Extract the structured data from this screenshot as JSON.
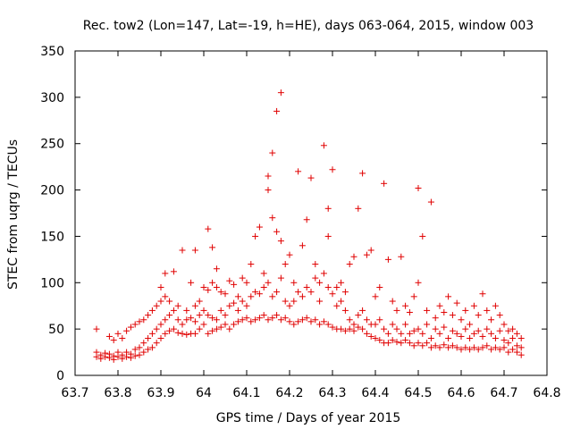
{
  "chart_data": {
    "type": "scatter",
    "title": "Rec. tow2 (Lon=147, Lat=-19, h=HE), days 063-064, 2015, window 003",
    "xlabel": "GPS time / Days of year 2015",
    "ylabel": "STEC from uqrg / TECUs",
    "xlim": [
      63.7,
      64.8
    ],
    "ylim": [
      0,
      350
    ],
    "xticks": [
      "63.7",
      "63.8",
      "63.9",
      "64",
      "64.1",
      "64.2",
      "64.3",
      "64.4",
      "64.5",
      "64.6",
      "64.7",
      "64.8"
    ],
    "yticks": [
      "0",
      "50",
      "100",
      "150",
      "200",
      "250",
      "300",
      "350"
    ],
    "grid": false,
    "legend": "none",
    "marker": "plus",
    "series_color": "#e00000",
    "points": [
      [
        63.75,
        20
      ],
      [
        63.75,
        25
      ],
      [
        63.75,
        50
      ],
      [
        63.76,
        18
      ],
      [
        63.76,
        22
      ],
      [
        63.77,
        20
      ],
      [
        63.77,
        24
      ],
      [
        63.78,
        19
      ],
      [
        63.78,
        23
      ],
      [
        63.78,
        42
      ],
      [
        63.79,
        17
      ],
      [
        63.79,
        21
      ],
      [
        63.79,
        38
      ],
      [
        63.8,
        20
      ],
      [
        63.8,
        25
      ],
      [
        63.8,
        45
      ],
      [
        63.81,
        18
      ],
      [
        63.81,
        22
      ],
      [
        63.81,
        40
      ],
      [
        63.82,
        20
      ],
      [
        63.82,
        25
      ],
      [
        63.82,
        48
      ],
      [
        63.83,
        19
      ],
      [
        63.83,
        23
      ],
      [
        63.83,
        52
      ],
      [
        63.84,
        21
      ],
      [
        63.84,
        28
      ],
      [
        63.84,
        55
      ],
      [
        63.85,
        22
      ],
      [
        63.85,
        30
      ],
      [
        63.85,
        58
      ],
      [
        63.86,
        25
      ],
      [
        63.86,
        35
      ],
      [
        63.86,
        60
      ],
      [
        63.87,
        28
      ],
      [
        63.87,
        40
      ],
      [
        63.87,
        65
      ],
      [
        63.88,
        30
      ],
      [
        63.88,
        45
      ],
      [
        63.88,
        70
      ],
      [
        63.89,
        35
      ],
      [
        63.89,
        50
      ],
      [
        63.89,
        75
      ],
      [
        63.9,
        40
      ],
      [
        63.9,
        55
      ],
      [
        63.9,
        80
      ],
      [
        63.9,
        95
      ],
      [
        63.91,
        45
      ],
      [
        63.91,
        60
      ],
      [
        63.91,
        85
      ],
      [
        63.91,
        110
      ],
      [
        63.92,
        48
      ],
      [
        63.92,
        65
      ],
      [
        63.92,
        80
      ],
      [
        63.93,
        50
      ],
      [
        63.93,
        70
      ],
      [
        63.93,
        112
      ],
      [
        63.94,
        46
      ],
      [
        63.94,
        60
      ],
      [
        63.94,
        75
      ],
      [
        63.95,
        45
      ],
      [
        63.95,
        55
      ],
      [
        63.95,
        135
      ],
      [
        63.96,
        44
      ],
      [
        63.96,
        60
      ],
      [
        63.96,
        70
      ],
      [
        63.97,
        45
      ],
      [
        63.97,
        62
      ],
      [
        63.97,
        100
      ],
      [
        63.98,
        45
      ],
      [
        63.98,
        58
      ],
      [
        63.98,
        75
      ],
      [
        63.98,
        135
      ],
      [
        63.99,
        50
      ],
      [
        63.99,
        65
      ],
      [
        63.99,
        80
      ],
      [
        64.0,
        55
      ],
      [
        64.0,
        70
      ],
      [
        64.0,
        95
      ],
      [
        64.01,
        45
      ],
      [
        64.01,
        65
      ],
      [
        64.01,
        92
      ],
      [
        64.01,
        158
      ],
      [
        64.02,
        48
      ],
      [
        64.02,
        62
      ],
      [
        64.02,
        100
      ],
      [
        64.02,
        138
      ],
      [
        64.03,
        50
      ],
      [
        64.03,
        60
      ],
      [
        64.03,
        95
      ],
      [
        64.03,
        115
      ],
      [
        64.04,
        52
      ],
      [
        64.04,
        70
      ],
      [
        64.04,
        90
      ],
      [
        64.05,
        55
      ],
      [
        64.05,
        65
      ],
      [
        64.05,
        88
      ],
      [
        64.06,
        50
      ],
      [
        64.06,
        75
      ],
      [
        64.06,
        102
      ],
      [
        64.07,
        55
      ],
      [
        64.07,
        78
      ],
      [
        64.07,
        98
      ],
      [
        64.08,
        58
      ],
      [
        64.08,
        70
      ],
      [
        64.08,
        85
      ],
      [
        64.09,
        60
      ],
      [
        64.09,
        80
      ],
      [
        64.09,
        105
      ],
      [
        64.1,
        62
      ],
      [
        64.1,
        75
      ],
      [
        64.1,
        100
      ],
      [
        64.11,
        58
      ],
      [
        64.11,
        85
      ],
      [
        64.11,
        120
      ],
      [
        64.12,
        60
      ],
      [
        64.12,
        90
      ],
      [
        64.12,
        150
      ],
      [
        64.13,
        62
      ],
      [
        64.13,
        88
      ],
      [
        64.13,
        160
      ],
      [
        64.14,
        65
      ],
      [
        64.14,
        95
      ],
      [
        64.14,
        110
      ],
      [
        64.15,
        60
      ],
      [
        64.15,
        100
      ],
      [
        64.15,
        200
      ],
      [
        64.15,
        215
      ],
      [
        64.16,
        62
      ],
      [
        64.16,
        85
      ],
      [
        64.16,
        170
      ],
      [
        64.16,
        240
      ],
      [
        64.17,
        65
      ],
      [
        64.17,
        90
      ],
      [
        64.17,
        285
      ],
      [
        64.17,
        155
      ],
      [
        64.18,
        60
      ],
      [
        64.18,
        105
      ],
      [
        64.18,
        305
      ],
      [
        64.18,
        145
      ],
      [
        64.19,
        62
      ],
      [
        64.19,
        80
      ],
      [
        64.19,
        120
      ],
      [
        64.2,
        58
      ],
      [
        64.2,
        75
      ],
      [
        64.2,
        130
      ],
      [
        64.21,
        55
      ],
      [
        64.21,
        80
      ],
      [
        64.21,
        100
      ],
      [
        64.22,
        58
      ],
      [
        64.22,
        90
      ],
      [
        64.22,
        220
      ],
      [
        64.23,
        60
      ],
      [
        64.23,
        85
      ],
      [
        64.23,
        140
      ],
      [
        64.24,
        62
      ],
      [
        64.24,
        95
      ],
      [
        64.24,
        168
      ],
      [
        64.25,
        58
      ],
      [
        64.25,
        90
      ],
      [
        64.25,
        213
      ],
      [
        64.26,
        60
      ],
      [
        64.26,
        105
      ],
      [
        64.26,
        120
      ],
      [
        64.27,
        55
      ],
      [
        64.27,
        80
      ],
      [
        64.27,
        100
      ],
      [
        64.28,
        58
      ],
      [
        64.28,
        110
      ],
      [
        64.28,
        248
      ],
      [
        64.29,
        55
      ],
      [
        64.29,
        95
      ],
      [
        64.29,
        150
      ],
      [
        64.29,
        180
      ],
      [
        64.3,
        52
      ],
      [
        64.3,
        88
      ],
      [
        64.3,
        222
      ],
      [
        64.31,
        50
      ],
      [
        64.31,
        75
      ],
      [
        64.31,
        95
      ],
      [
        64.32,
        50
      ],
      [
        64.32,
        80
      ],
      [
        64.32,
        100
      ],
      [
        64.33,
        48
      ],
      [
        64.33,
        70
      ],
      [
        64.33,
        90
      ],
      [
        64.34,
        50
      ],
      [
        64.34,
        60
      ],
      [
        64.34,
        120
      ],
      [
        64.35,
        48
      ],
      [
        64.35,
        55
      ],
      [
        64.35,
        128
      ],
      [
        64.36,
        52
      ],
      [
        64.36,
        65
      ],
      [
        64.36,
        180
      ],
      [
        64.37,
        50
      ],
      [
        64.37,
        70
      ],
      [
        64.37,
        218
      ],
      [
        64.38,
        45
      ],
      [
        64.38,
        60
      ],
      [
        64.38,
        130
      ],
      [
        64.39,
        42
      ],
      [
        64.39,
        55
      ],
      [
        64.39,
        135
      ],
      [
        64.4,
        40
      ],
      [
        64.4,
        55
      ],
      [
        64.4,
        85
      ],
      [
        64.41,
        38
      ],
      [
        64.41,
        60
      ],
      [
        64.41,
        95
      ],
      [
        64.42,
        35
      ],
      [
        64.42,
        50
      ],
      [
        64.42,
        207
      ],
      [
        64.43,
        35
      ],
      [
        64.43,
        45
      ],
      [
        64.43,
        125
      ],
      [
        64.44,
        38
      ],
      [
        64.44,
        55
      ],
      [
        64.44,
        80
      ],
      [
        64.45,
        36
      ],
      [
        64.45,
        50
      ],
      [
        64.45,
        70
      ],
      [
        64.46,
        35
      ],
      [
        64.46,
        45
      ],
      [
        64.46,
        128
      ],
      [
        64.47,
        38
      ],
      [
        64.47,
        55
      ],
      [
        64.47,
        75
      ],
      [
        64.48,
        35
      ],
      [
        64.48,
        45
      ],
      [
        64.48,
        68
      ],
      [
        64.49,
        32
      ],
      [
        64.49,
        48
      ],
      [
        64.49,
        85
      ],
      [
        64.5,
        35
      ],
      [
        64.5,
        50
      ],
      [
        64.5,
        100
      ],
      [
        64.5,
        202
      ],
      [
        64.51,
        32
      ],
      [
        64.51,
        45
      ],
      [
        64.51,
        150
      ],
      [
        64.52,
        35
      ],
      [
        64.52,
        55
      ],
      [
        64.52,
        70
      ],
      [
        64.53,
        30
      ],
      [
        64.53,
        40
      ],
      [
        64.53,
        187
      ],
      [
        64.54,
        32
      ],
      [
        64.54,
        50
      ],
      [
        64.54,
        62
      ],
      [
        64.55,
        30
      ],
      [
        64.55,
        45
      ],
      [
        64.55,
        75
      ],
      [
        64.56,
        33
      ],
      [
        64.56,
        52
      ],
      [
        64.56,
        68
      ],
      [
        64.57,
        30
      ],
      [
        64.57,
        40
      ],
      [
        64.57,
        85
      ],
      [
        64.58,
        32
      ],
      [
        64.58,
        48
      ],
      [
        64.58,
        65
      ],
      [
        64.59,
        30
      ],
      [
        64.59,
        45
      ],
      [
        64.59,
        78
      ],
      [
        64.6,
        28
      ],
      [
        64.6,
        42
      ],
      [
        64.6,
        60
      ],
      [
        64.61,
        30
      ],
      [
        64.61,
        50
      ],
      [
        64.61,
        70
      ],
      [
        64.62,
        28
      ],
      [
        64.62,
        40
      ],
      [
        64.62,
        55
      ],
      [
        64.63,
        30
      ],
      [
        64.63,
        45
      ],
      [
        64.63,
        75
      ],
      [
        64.64,
        28
      ],
      [
        64.64,
        48
      ],
      [
        64.64,
        65
      ],
      [
        64.65,
        30
      ],
      [
        64.65,
        42
      ],
      [
        64.65,
        88
      ],
      [
        64.66,
        32
      ],
      [
        64.66,
        50
      ],
      [
        64.66,
        70
      ],
      [
        64.67,
        28
      ],
      [
        64.67,
        45
      ],
      [
        64.67,
        60
      ],
      [
        64.68,
        30
      ],
      [
        64.68,
        40
      ],
      [
        64.68,
        75
      ],
      [
        64.69,
        28
      ],
      [
        64.69,
        48
      ],
      [
        64.69,
        65
      ],
      [
        64.7,
        30
      ],
      [
        64.7,
        38
      ],
      [
        64.7,
        55
      ],
      [
        64.71,
        25
      ],
      [
        64.71,
        35
      ],
      [
        64.71,
        48
      ],
      [
        64.72,
        28
      ],
      [
        64.72,
        40
      ],
      [
        64.72,
        50
      ],
      [
        64.73,
        25
      ],
      [
        64.73,
        32
      ],
      [
        64.73,
        45
      ],
      [
        64.74,
        22
      ],
      [
        64.74,
        30
      ],
      [
        64.74,
        40
      ]
    ]
  }
}
